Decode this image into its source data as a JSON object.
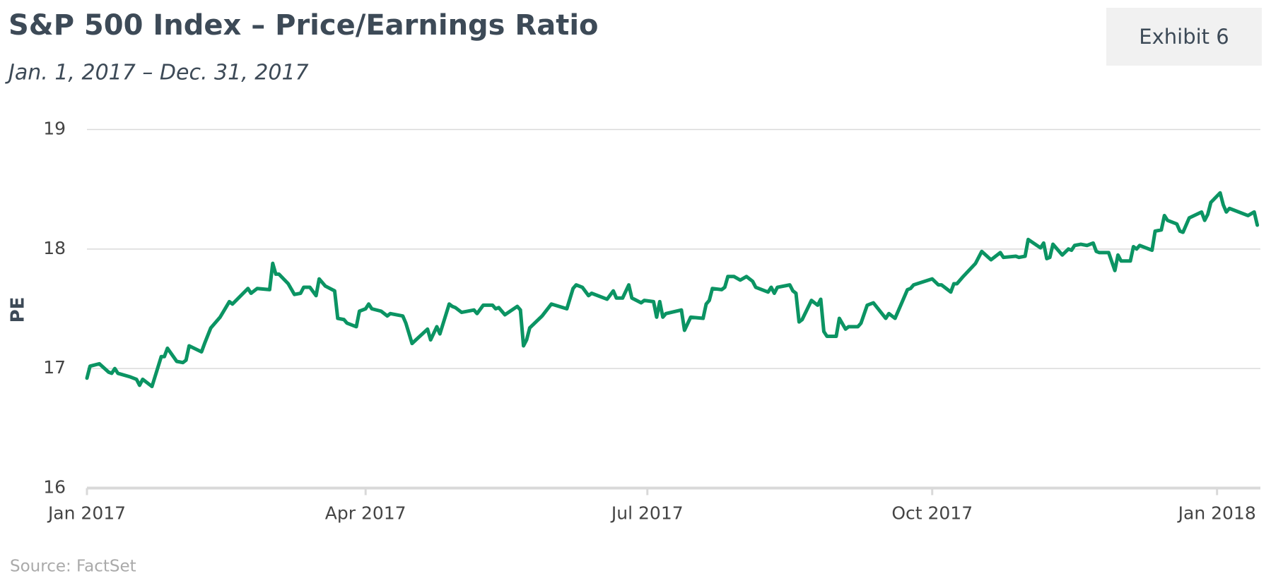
{
  "chart_data": {
    "type": "line",
    "title": "S&P 500 Index – Price/Earnings Ratio",
    "subtitle": "Jan. 1, 2017 – Dec. 31, 2017",
    "exhibit_label": "Exhibit 6",
    "y_label": "PE",
    "source": "Source: FactSet",
    "grid": true,
    "xlim": [
      "2017-01-01",
      "2018-01-15"
    ],
    "xticks": [
      {
        "value": "2017-01-01",
        "label": "Jan 2017"
      },
      {
        "value": "2017-04-01",
        "label": "Apr 2017"
      },
      {
        "value": "2017-07-01",
        "label": "Jul 2017"
      },
      {
        "value": "2017-10-01",
        "label": "Oct 2017"
      },
      {
        "value": "2018-01-01",
        "label": "Jan 2018"
      }
    ],
    "ylim": [
      16,
      19
    ],
    "yticks": [
      16,
      17,
      18,
      19
    ],
    "x": [
      "2017-01-01",
      "2017-01-02",
      "2017-01-05",
      "2017-01-08",
      "2017-01-09",
      "2017-01-10",
      "2017-01-11",
      "2017-01-15",
      "2017-01-17",
      "2017-01-18",
      "2017-01-19",
      "2017-01-22",
      "2017-01-25",
      "2017-01-26",
      "2017-01-27",
      "2017-01-30",
      "2017-02-01",
      "2017-02-02",
      "2017-02-03",
      "2017-02-07",
      "2017-02-08",
      "2017-02-10",
      "2017-02-13",
      "2017-02-16",
      "2017-02-17",
      "2017-02-22",
      "2017-02-23",
      "2017-02-25",
      "2017-03-01",
      "2017-03-02",
      "2017-03-03",
      "2017-03-04",
      "2017-03-07",
      "2017-03-09",
      "2017-03-11",
      "2017-03-12",
      "2017-03-14",
      "2017-03-16",
      "2017-03-17",
      "2017-03-19",
      "2017-03-22",
      "2017-03-23",
      "2017-03-25",
      "2017-03-26",
      "2017-03-29",
      "2017-03-30",
      "2017-04-01",
      "2017-04-02",
      "2017-04-03",
      "2017-04-06",
      "2017-04-08",
      "2017-04-09",
      "2017-04-13",
      "2017-04-14",
      "2017-04-16",
      "2017-04-21",
      "2017-04-22",
      "2017-04-24",
      "2017-04-25",
      "2017-04-28",
      "2017-04-29",
      "2017-04-30",
      "2017-05-02",
      "2017-05-06",
      "2017-05-07",
      "2017-05-09",
      "2017-05-12",
      "2017-05-13",
      "2017-05-14",
      "2017-05-16",
      "2017-05-20",
      "2017-05-21",
      "2017-05-22",
      "2017-05-23",
      "2017-05-24",
      "2017-05-28",
      "2017-05-31",
      "2017-06-05",
      "2017-06-07",
      "2017-06-08",
      "2017-06-10",
      "2017-06-12",
      "2017-06-13",
      "2017-06-18",
      "2017-06-20",
      "2017-06-21",
      "2017-06-23",
      "2017-06-25",
      "2017-06-26",
      "2017-06-29",
      "2017-06-30",
      "2017-07-03",
      "2017-07-04",
      "2017-07-05",
      "2017-07-06",
      "2017-07-07",
      "2017-07-12",
      "2017-07-13",
      "2017-07-15",
      "2017-07-19",
      "2017-07-20",
      "2017-07-21",
      "2017-07-22",
      "2017-07-25",
      "2017-07-26",
      "2017-07-27",
      "2017-07-29",
      "2017-07-31",
      "2017-08-02",
      "2017-08-04",
      "2017-08-05",
      "2017-08-09",
      "2017-08-10",
      "2017-08-11",
      "2017-08-12",
      "2017-08-16",
      "2017-08-17",
      "2017-08-18",
      "2017-08-19",
      "2017-08-20",
      "2017-08-23",
      "2017-08-25",
      "2017-08-26",
      "2017-08-27",
      "2017-08-28",
      "2017-08-31",
      "2017-09-01",
      "2017-09-03",
      "2017-09-04",
      "2017-09-07",
      "2017-09-08",
      "2017-09-10",
      "2017-09-12",
      "2017-09-16",
      "2017-09-17",
      "2017-09-19",
      "2017-09-23",
      "2017-09-24",
      "2017-09-25",
      "2017-10-01",
      "2017-10-03",
      "2017-10-04",
      "2017-10-07",
      "2017-10-08",
      "2017-10-09",
      "2017-10-11",
      "2017-10-15",
      "2017-10-17",
      "2017-10-20",
      "2017-10-23",
      "2017-10-24",
      "2017-10-28",
      "2017-10-29",
      "2017-10-31",
      "2017-11-01",
      "2017-11-05",
      "2017-11-06",
      "2017-11-07",
      "2017-11-08",
      "2017-11-09",
      "2017-11-12",
      "2017-11-14",
      "2017-11-15",
      "2017-11-16",
      "2017-11-18",
      "2017-11-20",
      "2017-11-22",
      "2017-11-23",
      "2017-11-24",
      "2017-11-27",
      "2017-11-29",
      "2017-11-30",
      "2017-12-01",
      "2017-12-04",
      "2017-12-05",
      "2017-12-06",
      "2017-12-07",
      "2017-12-11",
      "2017-12-12",
      "2017-12-14",
      "2017-12-15",
      "2017-12-16",
      "2017-12-19",
      "2017-12-20",
      "2017-12-21",
      "2017-12-23",
      "2017-12-27",
      "2017-12-28",
      "2017-12-29",
      "2017-12-30",
      "2018-01-02",
      "2018-01-03",
      "2018-01-04",
      "2018-01-05",
      "2018-01-11",
      "2018-01-13",
      "2018-01-14"
    ],
    "series": [
      {
        "name": "PE",
        "color": "#0b9463",
        "values": [
          16.92,
          17.02,
          17.04,
          16.97,
          16.96,
          17.0,
          16.96,
          16.93,
          16.91,
          16.86,
          16.91,
          16.85,
          17.1,
          17.1,
          17.17,
          17.06,
          17.05,
          17.07,
          17.19,
          17.14,
          17.21,
          17.34,
          17.43,
          17.56,
          17.54,
          17.67,
          17.63,
          17.67,
          17.66,
          17.88,
          17.79,
          17.79,
          17.71,
          17.62,
          17.63,
          17.68,
          17.68,
          17.61,
          17.75,
          17.69,
          17.65,
          17.42,
          17.41,
          17.38,
          17.35,
          17.48,
          17.5,
          17.54,
          17.5,
          17.48,
          17.44,
          17.46,
          17.44,
          17.38,
          17.21,
          17.33,
          17.24,
          17.35,
          17.29,
          17.54,
          17.52,
          17.51,
          17.47,
          17.49,
          17.46,
          17.53,
          17.53,
          17.5,
          17.51,
          17.45,
          17.52,
          17.49,
          17.19,
          17.24,
          17.34,
          17.44,
          17.54,
          17.5,
          17.67,
          17.7,
          17.68,
          17.61,
          17.63,
          17.58,
          17.65,
          17.59,
          17.59,
          17.7,
          17.59,
          17.55,
          17.57,
          17.56,
          17.43,
          17.56,
          17.43,
          17.46,
          17.49,
          17.32,
          17.43,
          17.42,
          17.54,
          17.57,
          17.67,
          17.66,
          17.68,
          17.77,
          17.77,
          17.74,
          17.77,
          17.73,
          17.68,
          17.64,
          17.68,
          17.63,
          17.68,
          17.7,
          17.65,
          17.63,
          17.39,
          17.41,
          17.57,
          17.53,
          17.58,
          17.31,
          17.27,
          17.27,
          17.42,
          17.33,
          17.35,
          17.35,
          17.38,
          17.53,
          17.55,
          17.42,
          17.46,
          17.42,
          17.66,
          17.67,
          17.7,
          17.75,
          17.7,
          17.7,
          17.64,
          17.71,
          17.71,
          17.77,
          17.88,
          17.98,
          17.91,
          17.97,
          17.93,
          17.94,
          17.93,
          17.94,
          18.08,
          18.01,
          18.05,
          17.92,
          17.93,
          18.04,
          17.95,
          18.0,
          17.99,
          18.03,
          18.04,
          18.03,
          18.05,
          17.98,
          17.97,
          17.97,
          17.82,
          17.95,
          17.9,
          17.9,
          18.02,
          18.0,
          18.03,
          17.99,
          18.15,
          18.16,
          18.28,
          18.24,
          18.21,
          18.15,
          18.14,
          18.26,
          18.31,
          18.24,
          18.29,
          18.39,
          18.47,
          18.37,
          18.31,
          18.34,
          18.28,
          18.31,
          18.2
        ]
      }
    ]
  }
}
